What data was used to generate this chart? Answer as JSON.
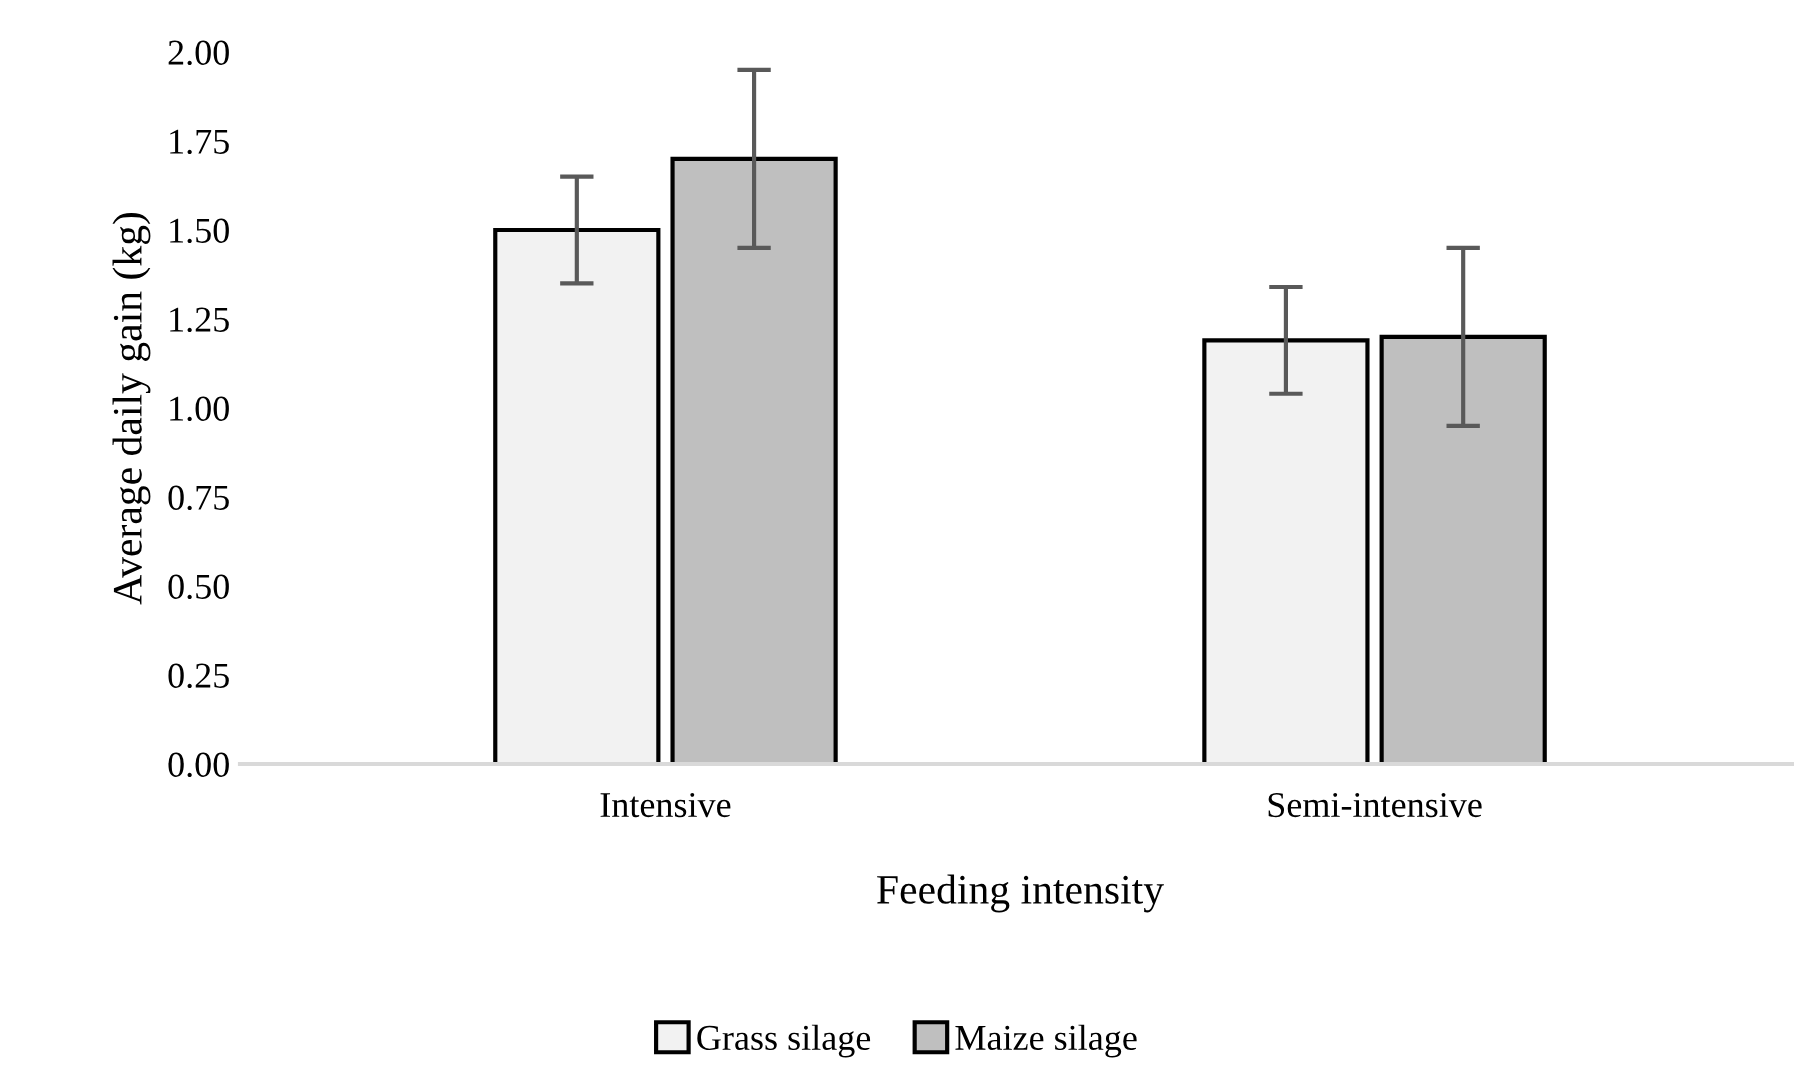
{
  "chart_data": {
    "type": "bar",
    "xlabel": "Feeding intensity",
    "ylabel": "Average daily gain (kg)",
    "categories": [
      "Intensive",
      "Semi-intensive"
    ],
    "series": [
      {
        "name": "Grass silage",
        "color": "#f2f2f2",
        "values": [
          1.5,
          1.19
        ],
        "errors": [
          0.15,
          0.15
        ]
      },
      {
        "name": "Maize silage",
        "color": "#bfbfbf",
        "values": [
          1.7,
          1.2
        ],
        "errors": [
          0.25,
          0.25
        ]
      }
    ],
    "ylim": [
      0,
      2
    ],
    "yticks": [
      {
        "value": 0,
        "label": "0.00"
      },
      {
        "value": 0.25,
        "label": "0.25"
      },
      {
        "value": 0.5,
        "label": "0.50"
      },
      {
        "value": 0.75,
        "label": "0.75"
      },
      {
        "value": 1,
        "label": "1.00"
      },
      {
        "value": 1.25,
        "label": "1.25"
      },
      {
        "value": 1.5,
        "label": "1.50"
      },
      {
        "value": 1.75,
        "label": "1.75"
      },
      {
        "value": 2,
        "label": "2.00"
      }
    ],
    "grid": false,
    "legend": "bottom"
  }
}
